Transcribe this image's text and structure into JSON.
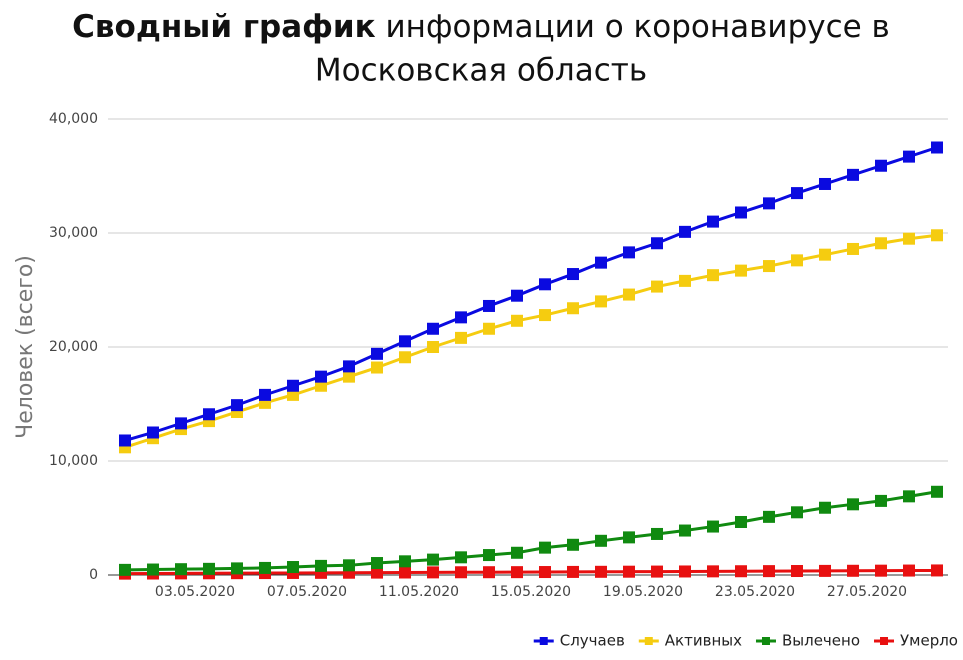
{
  "chart_data": {
    "type": "line",
    "title": {
      "bold": "Сводный график",
      "rest_line1": "информации о коронавирусе в",
      "rest_line2": "Московская область"
    },
    "y_label": "Человек (всего)",
    "categories": [
      null,
      null,
      "03.05.2020",
      null,
      null,
      null,
      "07.05.2020",
      null,
      null,
      null,
      "11.05.2020",
      null,
      null,
      null,
      "15.05.2020",
      null,
      null,
      null,
      "19.05.2020",
      null,
      null,
      null,
      "23.05.2020",
      null,
      null,
      null,
      "27.05.2020",
      null,
      null,
      null
    ],
    "series": [
      {
        "name": "Случаев",
        "color": "#0a0ae0",
        "values": [
          11800,
          12500,
          13300,
          14100,
          14900,
          15800,
          16600,
          17400,
          18300,
          19400,
          20500,
          21600,
          22600,
          23600,
          24500,
          25500,
          26400,
          27400,
          28300,
          29100,
          30100,
          31000,
          31800,
          32600,
          33500,
          34300,
          35100,
          35900,
          36700,
          37500
        ]
      },
      {
        "name": "Активных",
        "color": "#f5cc10",
        "values": [
          11200,
          12000,
          12800,
          13500,
          14300,
          15100,
          15800,
          16600,
          17400,
          18200,
          19100,
          20000,
          20800,
          21600,
          22300,
          22800,
          23400,
          24000,
          24600,
          25300,
          25800,
          26300,
          26700,
          27100,
          27600,
          28100,
          28600,
          29100,
          29500,
          29800
        ]
      },
      {
        "name": "Вылечено",
        "color": "#108a10",
        "values": [
          450,
          480,
          510,
          540,
          580,
          620,
          700,
          800,
          850,
          1050,
          1200,
          1350,
          1550,
          1750,
          1950,
          2400,
          2650,
          3000,
          3300,
          3600,
          3900,
          4250,
          4650,
          5100,
          5500,
          5900,
          6200,
          6500,
          6900,
          7300
        ]
      },
      {
        "name": "Умерло",
        "color": "#e81010",
        "values": [
          120,
          130,
          140,
          150,
          160,
          170,
          180,
          190,
          200,
          210,
          220,
          230,
          240,
          245,
          250,
          260,
          270,
          280,
          290,
          300,
          310,
          320,
          330,
          340,
          350,
          360,
          370,
          380,
          390,
          400
        ]
      }
    ],
    "ylim": [
      0,
      40000
    ],
    "yticks": [
      0,
      {
        "value": 10000,
        "label": "10,000"
      },
      {
        "value": 20000,
        "label": "20,000"
      },
      {
        "value": 30000,
        "label": "30,000"
      },
      {
        "value": 40000,
        "label": "40,000"
      }
    ],
    "grid": true,
    "legend": "bottom-right"
  }
}
